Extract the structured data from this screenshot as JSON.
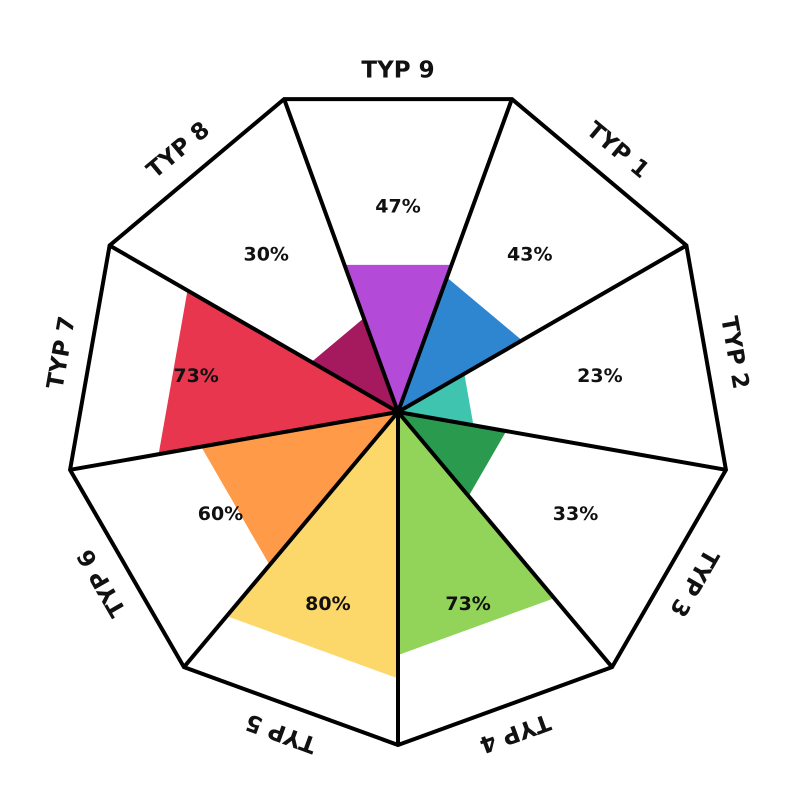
{
  "chart_data": {
    "type": "radial-wedge",
    "categories": [
      "TYP 1",
      "TYP 2",
      "TYP 3",
      "TYP 4",
      "TYP 5",
      "TYP 6",
      "TYP 7",
      "TYP 8",
      "TYP 9"
    ],
    "values": [
      43,
      23,
      33,
      73,
      80,
      60,
      73,
      30,
      47
    ],
    "value_labels": [
      "43%",
      "23%",
      "33%",
      "73%",
      "80%",
      "60%",
      "73%",
      "30%",
      "47%"
    ],
    "colors": [
      "#2f86d0",
      "#3fc4b0",
      "#2a9a4e",
      "#92d45a",
      "#fcd86a",
      "#ff9a48",
      "#e8364f",
      "#a5195e",
      "#b44ad8"
    ],
    "rlim": [
      0,
      100
    ]
  }
}
